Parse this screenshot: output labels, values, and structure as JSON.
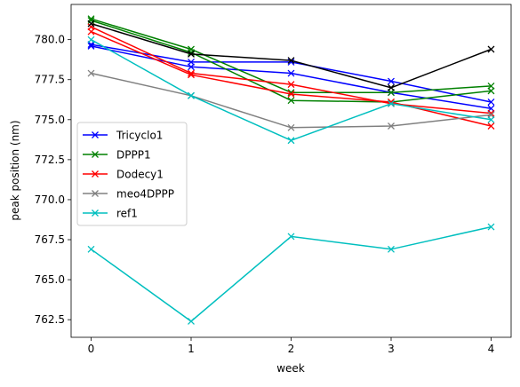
{
  "chart_data": {
    "type": "line",
    "xlabel": "week",
    "ylabel": "peak position (nm)",
    "xlim": [
      -0.2,
      4.2
    ],
    "ylim": [
      761.4,
      782.2
    ],
    "x_ticks": [
      0,
      1,
      2,
      3,
      4
    ],
    "y_ticks": [
      762.5,
      765.0,
      767.5,
      770.0,
      772.5,
      775.0,
      777.5,
      780.0
    ],
    "grid": false,
    "legend_position": "center-left",
    "marker": "x",
    "series": [
      {
        "name": "",
        "color": "#0000ff",
        "x": [
          0,
          1,
          2,
          3,
          4
        ],
        "y": [
          779.6,
          778.3,
          777.9,
          776.7,
          775.7
        ]
      },
      {
        "name": "Tricyclo1",
        "color": "#0000ff",
        "x": [
          0,
          1,
          2,
          3,
          4
        ],
        "y": [
          779.7,
          778.6,
          778.6,
          777.4,
          776.1
        ]
      },
      {
        "name": "",
        "color": "#008000",
        "x": [
          0,
          1,
          2,
          3,
          4
        ],
        "y": [
          781.2,
          779.2,
          776.2,
          776.1,
          776.8
        ]
      },
      {
        "name": "DPPP1",
        "color": "#008000",
        "x": [
          0,
          1,
          2,
          3,
          4
        ],
        "y": [
          781.3,
          779.4,
          776.7,
          776.7,
          777.1
        ]
      },
      {
        "name": "",
        "color": "#ff0000",
        "x": [
          0,
          1,
          2,
          3,
          4
        ],
        "y": [
          780.5,
          777.8,
          776.6,
          776.1,
          774.6
        ]
      },
      {
        "name": "Dodecy1",
        "color": "#ff0000",
        "x": [
          0,
          1,
          2,
          3,
          4
        ],
        "y": [
          780.8,
          777.9,
          777.2,
          776.0,
          775.4
        ]
      },
      {
        "name": "meo4DPPP",
        "color": "#808080",
        "x": [
          0,
          1,
          2,
          3,
          4
        ],
        "y": [
          777.9,
          776.5,
          774.5,
          774.6,
          775.3
        ]
      },
      {
        "name": "ref1",
        "color": "#00bfbf",
        "x": [
          0,
          1,
          2,
          3,
          4
        ],
        "y": [
          766.9,
          762.4,
          767.7,
          766.9,
          768.3
        ]
      },
      {
        "name": "",
        "color": "#00bfbf",
        "x": [
          0,
          1,
          2,
          3,
          4
        ],
        "y": [
          780.0,
          776.5,
          773.7,
          776.0,
          775.0
        ]
      },
      {
        "name": "",
        "color": "#000000",
        "x": [
          0,
          1,
          2,
          3,
          4
        ],
        "y": [
          781.0,
          779.1,
          778.7,
          777.0,
          779.4
        ]
      }
    ]
  }
}
